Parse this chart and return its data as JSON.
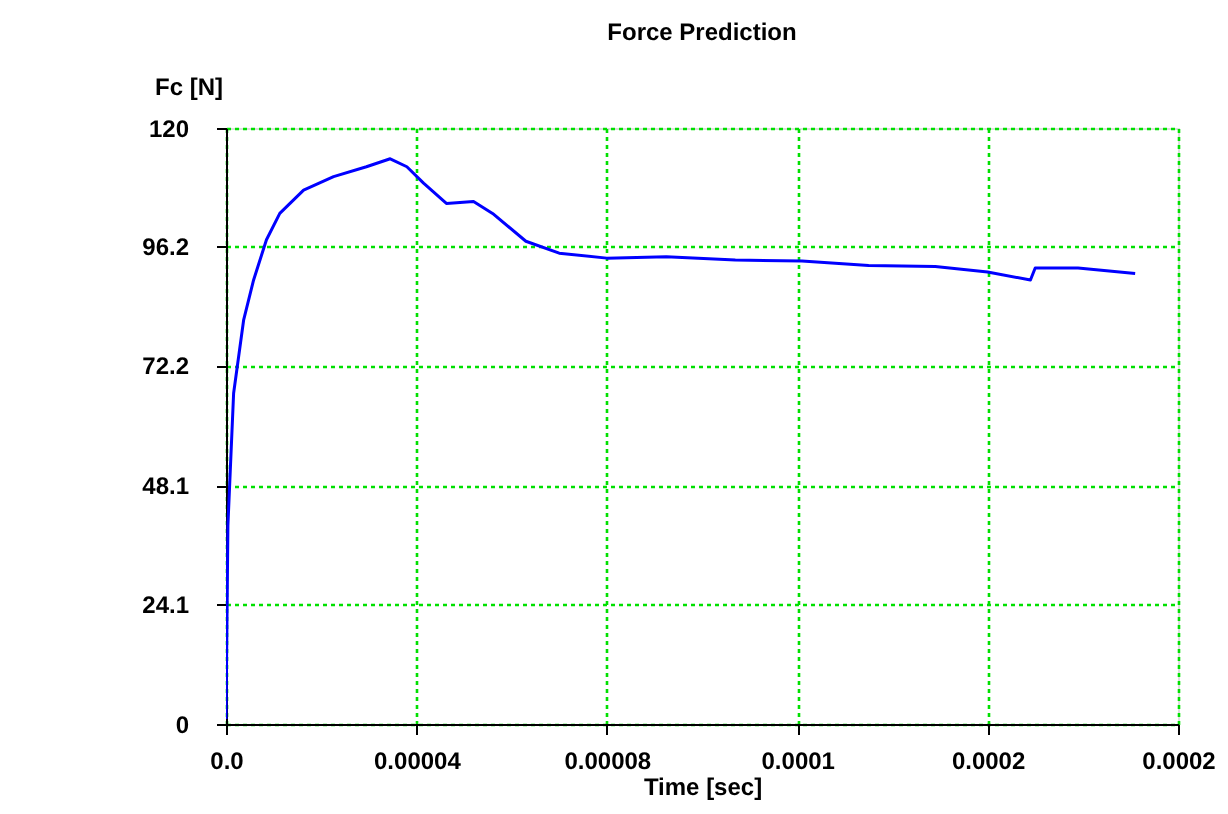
{
  "chart_data": {
    "type": "line",
    "title": "Force Prediction",
    "xlabel": "Time [sec]",
    "ylabel": "Fc [N]",
    "x": [
      0,
      4e-07,
      1.6e-06,
      3.7e-06,
      5.8e-06,
      8.5e-06,
      1.13e-05,
      1.63e-05,
      2.26e-05,
      2.95e-05,
      3.45e-05,
      3.8e-05,
      4.15e-05,
      4.63e-05,
      5.2e-05,
      5.6e-05,
      6.3e-05,
      7e-05,
      8e-05,
      9.25e-05,
      0.000107,
      0.000121,
      0.000135,
      0.000149,
      0.00016,
      0.000169,
      0.00017,
      0.000179,
      0.000191
    ],
    "series": [
      {
        "color": "#0000ff",
        "values": [
          1,
          40,
          66.6,
          81.3,
          89.4,
          97.5,
          102.8,
          107.5,
          110.2,
          112.2,
          113.8,
          112.2,
          108.9,
          104.8,
          105.2,
          102.8,
          97.2,
          94.8,
          93.8,
          94.1,
          93.4,
          93.2,
          92.3,
          92.1,
          91.0,
          89.4,
          91.8,
          91.8,
          90.7
        ]
      }
    ],
    "xlim": [
      0,
      0.0002
    ],
    "ylim": [
      0,
      120
    ],
    "xticks": [
      {
        "value": 0,
        "label": "0.0"
      },
      {
        "value": 4e-05,
        "label": "0.00004"
      },
      {
        "value": 8e-05,
        "label": "0.00008"
      },
      {
        "value": 0.00012,
        "label": "0.0001"
      },
      {
        "value": 0.00016,
        "label": "0.0002"
      },
      {
        "value": 0.0002,
        "label": "0.0002"
      }
    ],
    "yticks": [
      0,
      24.1,
      48.1,
      72.2,
      96.2,
      120
    ],
    "grid": true,
    "marker": "none",
    "line_style": "solid"
  }
}
